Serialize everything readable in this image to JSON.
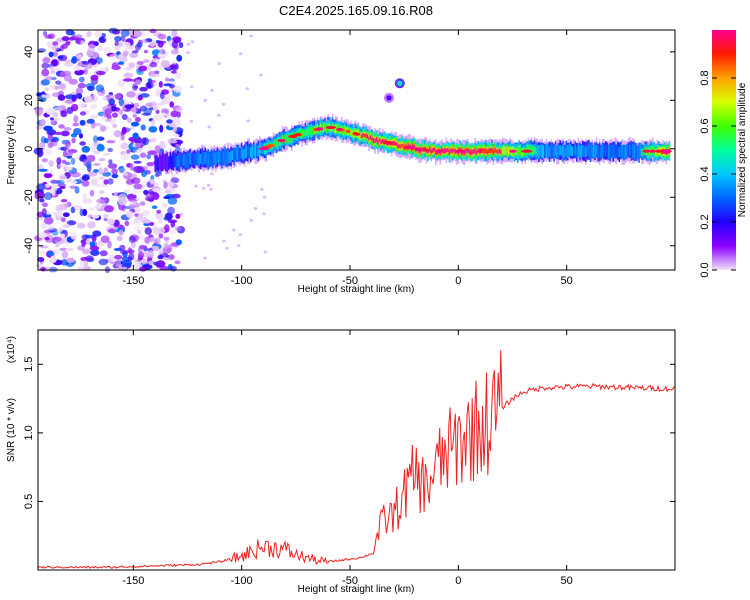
{
  "title": "C2E4.2025.165.09.16.R08",
  "chart_data": [
    {
      "type": "heatmap",
      "xlabel": "Height of straight line (km)",
      "ylabel": "Frequency (Hz)",
      "xlim": [
        -194,
        100
      ],
      "ylim": [
        -50,
        49
      ],
      "x_ticks": [
        -150,
        -100,
        -50,
        0,
        50
      ],
      "y_ticks": [
        -40,
        -20,
        0,
        20,
        40
      ],
      "colorbar": {
        "label": "Normalized spectral amplitude",
        "range": [
          0,
          1
        ],
        "ticks": [
          "0.0",
          "0.2",
          "0.4",
          "0.6",
          "0.8"
        ],
        "colormap": [
          "#f0e2f8",
          "#8a00ff",
          "#2200ff",
          "#0066ff",
          "#00c8ff",
          "#00ff9a",
          "#40ff00",
          "#d8ff00",
          "#ffa000",
          "#ff1a00",
          "#ff0090"
        ]
      },
      "ridge": {
        "x": [
          -140,
          -130,
          -120,
          -110,
          -100,
          -90,
          -80,
          -70,
          -60,
          -50,
          -40,
          -30,
          -20,
          -10,
          0,
          10,
          20,
          40,
          60,
          80,
          98
        ],
        "frequency": [
          -6,
          -5,
          -4,
          -4,
          -2,
          0,
          4,
          7,
          9,
          7,
          4,
          2,
          0,
          -1,
          -1,
          -1,
          -1,
          -1,
          -1,
          -1,
          -1
        ],
        "amplitude": [
          0.3,
          0.45,
          0.5,
          0.5,
          0.55,
          0.6,
          0.62,
          0.65,
          0.7,
          0.75,
          0.85,
          0.85,
          0.9,
          0.85,
          0.9,
          0.85,
          0.8,
          0.55,
          0.5,
          0.5,
          0.9
        ]
      },
      "features": [
        {
          "x": -27,
          "frequency": 27,
          "amplitude": 0.45
        },
        {
          "x": -32,
          "frequency": 21,
          "amplitude": 0.15
        }
      ],
      "noise_region_x": [
        -194,
        -128
      ]
    },
    {
      "type": "line",
      "xlabel": "Height of straight line (km)",
      "ylabel": "SNR (10 * v/v)",
      "y_multiplier": "(x10⁴)",
      "xlim": [
        -194,
        100
      ],
      "ylim": [
        0,
        1.75
      ],
      "x_ticks": [
        -150,
        -100,
        -50,
        0,
        50
      ],
      "y_ticks": [
        0.5,
        1.0,
        1.5
      ],
      "y_tick_labels": [
        "0.5",
        "1.0",
        "1.5"
      ],
      "series": [
        {
          "color": "#ee2222",
          "x": [
            -194,
            -180,
            -160,
            -140,
            -120,
            -110,
            -100,
            -95,
            -90,
            -85,
            -80,
            -75,
            -70,
            -65,
            -60,
            -55,
            -50,
            -45,
            -40,
            -35,
            -30,
            -25,
            -20,
            -15,
            -10,
            -5,
            0,
            5,
            10,
            15,
            20,
            25,
            30,
            40,
            60,
            80,
            100
          ],
          "y": [
            0.02,
            0.02,
            0.02,
            0.03,
            0.04,
            0.06,
            0.1,
            0.14,
            0.17,
            0.16,
            0.15,
            0.11,
            0.09,
            0.07,
            0.06,
            0.07,
            0.08,
            0.09,
            0.12,
            0.35,
            0.4,
            0.55,
            0.7,
            0.6,
            0.75,
            0.85,
            0.92,
            1.0,
            1.05,
            1.1,
            1.18,
            1.25,
            1.3,
            1.33,
            1.34,
            1.33,
            1.32
          ]
        }
      ]
    }
  ]
}
